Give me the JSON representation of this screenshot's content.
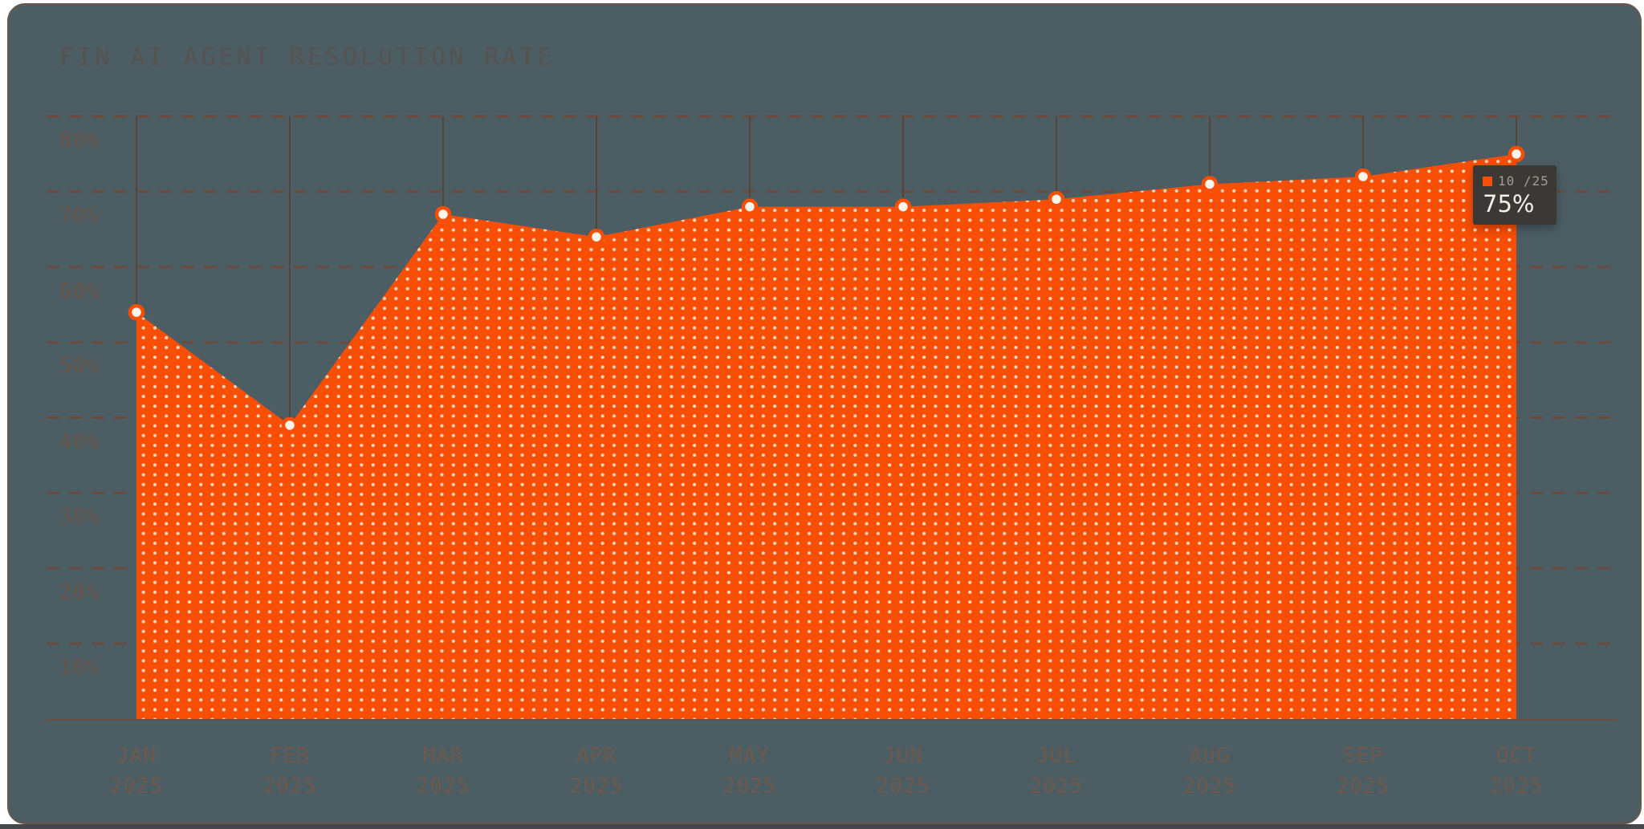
{
  "page": {
    "title": "FIN AI AGENT RESOLUTION RATE"
  },
  "tooltip": {
    "series_label": "10 /25",
    "value": "75%"
  },
  "chart_data": {
    "type": "area",
    "title": "FIN AI AGENT RESOLUTION RATE",
    "categories": [
      "JAN 2025",
      "FEB 2025",
      "MAR 2025",
      "APR 2025",
      "MAY 2025",
      "JUN 2025",
      "JUL 2025",
      "AUG 2025",
      "SEP 2025",
      "OCT 2025"
    ],
    "values": [
      54,
      39,
      67,
      64,
      68,
      68,
      69,
      71,
      72,
      75
    ],
    "unit": "%",
    "ylim": [
      0,
      80
    ],
    "ytick_values": [
      80,
      70,
      60,
      50,
      40,
      30,
      20,
      10
    ],
    "ytick_labels": [
      "80%",
      "70%",
      "60%",
      "50%",
      "40%",
      "30%",
      "20%",
      "10%"
    ],
    "grid": "horizontal dashed lines; vertical line from 80% gridline down to each data point",
    "legend": "none",
    "highlighted_point": {
      "category": "OCT 2025",
      "label": "10 /25",
      "value": 75,
      "value_text": "75%"
    },
    "colors": {
      "background": "#4c5d64",
      "area_fill": "#f84e06",
      "area_dots": "#ffd8bf",
      "gridline": "#6d4a3a",
      "vertical_line": "#54443e",
      "axis_line": "#6f4c3e",
      "marker_fill": "#fdf4ea",
      "marker_ring": "#f84e06",
      "tick_text": "#6d5a4e",
      "title_text": "#565250",
      "tooltip_bg": "#3a3936",
      "tooltip_label": "#a39d93",
      "tooltip_value": "#f6f2ea",
      "panel_border": "#6b574c"
    }
  }
}
